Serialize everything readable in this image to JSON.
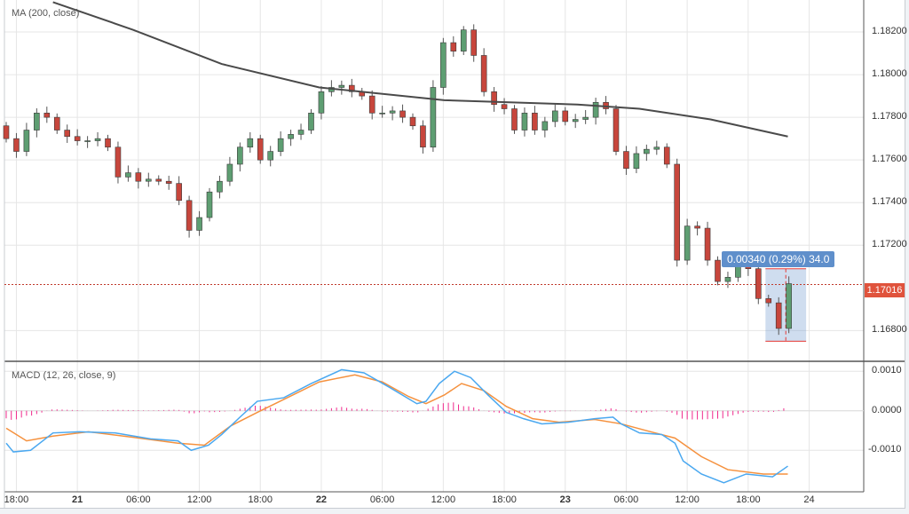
{
  "chart_data": [
    {
      "type": "candlestick",
      "title": "MA (200, close)",
      "interval_hours": 1,
      "start_time_label": "17:00",
      "closes": [
        1.177,
        1.1764,
        1.1774,
        1.1782,
        1.178,
        1.1774,
        1.1771,
        1.1769,
        1.1769,
        1.177,
        1.1766,
        1.1752,
        1.1754,
        1.175,
        1.1751,
        1.175,
        1.1749,
        1.1741,
        1.1727,
        1.1733,
        1.1745,
        1.175,
        1.1758,
        1.1766,
        1.177,
        1.176,
        1.1764,
        1.177,
        1.1772,
        1.1774,
        1.1782,
        1.1792,
        1.1794,
        1.1795,
        1.1792,
        1.179,
        1.1782,
        1.1782,
        1.1783,
        1.178,
        1.1776,
        1.1766,
        1.1794,
        1.1815,
        1.1811,
        1.1821,
        1.1809,
        1.1792,
        1.1786,
        1.1784,
        1.1774,
        1.1782,
        1.1774,
        1.1778,
        1.1783,
        1.1778,
        1.1779,
        1.178,
        1.1787,
        1.1784,
        1.1764,
        1.1756,
        1.1763,
        1.1765,
        1.1766,
        1.1758,
        1.1713,
        1.1729,
        1.1728,
        1.1713,
        1.1703,
        1.1705,
        1.1712,
        1.1709,
        1.1695,
        1.1693,
        1.1681,
        1.1702
      ],
      "first_open": 1.1776,
      "ma200": [
        [
          4.6,
          1.1834
        ],
        [
          12.5,
          1.1821
        ],
        [
          21.2,
          1.1805
        ],
        [
          30.8,
          1.1794
        ],
        [
          43.1,
          1.1788
        ],
        [
          56.2,
          1.1786
        ],
        [
          62.3,
          1.1784
        ],
        [
          69.3,
          1.1779
        ],
        [
          76.9,
          1.1771
        ]
      ],
      "ylim": [
        1.1666,
        1.1835
      ],
      "y_ticks": [
        "1.18200",
        "1.18000",
        "1.17800",
        "1.17600",
        "1.17400",
        "1.17200",
        "1.16800"
      ],
      "y_tick_values": [
        1.182,
        1.18,
        1.178,
        1.176,
        1.174,
        1.172,
        1.168
      ],
      "current_price": "1.17016",
      "current_price_value": 1.17016,
      "measure": {
        "label": "0.00340 (0.29%) 34.0",
        "from_hour": 74.7,
        "to_hour": 78.7,
        "high": 1.1709,
        "low": 1.1675
      },
      "colors": {
        "up": "#5e9e72",
        "down": "#c7463c",
        "ma": "#4a4a4a",
        "price_tag": "#e0533c",
        "measure": "#5f8fcb"
      }
    },
    {
      "type": "line",
      "title": "MACD (12, 26, close, 9)",
      "macd": [
        [
          0,
          -0.00082
        ],
        [
          0.7,
          -0.00104
        ],
        [
          2.4,
          -0.001
        ],
        [
          4.6,
          -0.00056
        ],
        [
          7.2,
          -0.00053
        ],
        [
          10.7,
          -0.00056
        ],
        [
          14.2,
          -0.00071
        ],
        [
          16.9,
          -0.00076
        ],
        [
          18.2,
          -0.001
        ],
        [
          19.9,
          -0.00087
        ],
        [
          21.2,
          -0.0006
        ],
        [
          23,
          -0.00016
        ],
        [
          24.7,
          0.00024
        ],
        [
          27.3,
          0.00033
        ],
        [
          30,
          0.00069
        ],
        [
          33,
          0.00104
        ],
        [
          35.2,
          0.00096
        ],
        [
          37.8,
          0.00058
        ],
        [
          40.4,
          0.00018
        ],
        [
          41.3,
          0.00024
        ],
        [
          42.6,
          0.00069
        ],
        [
          44.1,
          0.001
        ],
        [
          45.7,
          0.00084
        ],
        [
          47.4,
          0.0004
        ],
        [
          49.2,
          -4e-05
        ],
        [
          50.9,
          -0.0002
        ],
        [
          52.7,
          -0.00033
        ],
        [
          55.3,
          -0.00029
        ],
        [
          57.9,
          -0.0002
        ],
        [
          59.7,
          -0.00016
        ],
        [
          60.5,
          -0.00033
        ],
        [
          62.3,
          -0.00056
        ],
        [
          64.5,
          -0.0006
        ],
        [
          65.8,
          -0.00082
        ],
        [
          66.6,
          -0.00127
        ],
        [
          68.4,
          -0.0016
        ],
        [
          70.6,
          -0.00182
        ],
        [
          72.8,
          -0.0016
        ],
        [
          75.4,
          -0.00167
        ],
        [
          76.9,
          -0.0014
        ]
      ],
      "signal": [
        [
          0,
          -0.00044
        ],
        [
          2,
          -0.00076
        ],
        [
          4.6,
          -0.00064
        ],
        [
          8.1,
          -0.00053
        ],
        [
          12.5,
          -0.00067
        ],
        [
          16.9,
          -0.00082
        ],
        [
          19.5,
          -0.00087
        ],
        [
          22.1,
          -0.00038
        ],
        [
          24.7,
          -4e-05
        ],
        [
          28.2,
          0.0004
        ],
        [
          30.8,
          0.00073
        ],
        [
          34.3,
          0.00091
        ],
        [
          37,
          0.00073
        ],
        [
          39.6,
          0.00036
        ],
        [
          41.3,
          0.00018
        ],
        [
          43.1,
          0.0004
        ],
        [
          44.8,
          0.00069
        ],
        [
          47,
          0.00051
        ],
        [
          49.2,
          0.00011
        ],
        [
          51.8,
          -0.0002
        ],
        [
          54.4,
          -0.00029
        ],
        [
          57.9,
          -0.00022
        ],
        [
          60.5,
          -0.00033
        ],
        [
          63.1,
          -0.00051
        ],
        [
          65.8,
          -0.00069
        ],
        [
          68.4,
          -0.00116
        ],
        [
          71,
          -0.00149
        ],
        [
          74.5,
          -0.0016
        ],
        [
          76.9,
          -0.0016
        ]
      ],
      "ylim": [
        -0.00205,
        0.00123
      ],
      "y_ticks": [
        "0.0010",
        "0.0000",
        "-0.0010"
      ],
      "y_tick_values": [
        0.001,
        0,
        -0.001
      ],
      "colors": {
        "macd": "#4aa8f0",
        "signal": "#f5913e",
        "histogram": "#f0288c"
      }
    }
  ],
  "x_ticks": [
    {
      "label": "18:00",
      "hour": 1.0,
      "bold": false
    },
    {
      "label": "21",
      "hour": 7.0,
      "bold": true
    },
    {
      "label": "06:00",
      "hour": 13.0,
      "bold": false
    },
    {
      "label": "12:00",
      "hour": 19.0,
      "bold": false
    },
    {
      "label": "18:00",
      "hour": 25.0,
      "bold": false
    },
    {
      "label": "22",
      "hour": 31.0,
      "bold": true
    },
    {
      "label": "06:00",
      "hour": 37.0,
      "bold": false
    },
    {
      "label": "12:00",
      "hour": 43.0,
      "bold": false
    },
    {
      "label": "18:00",
      "hour": 49.0,
      "bold": false
    },
    {
      "label": "23",
      "hour": 55.0,
      "bold": true
    },
    {
      "label": "06:00",
      "hour": 61.0,
      "bold": false
    },
    {
      "label": "12:00",
      "hour": 67.0,
      "bold": false
    },
    {
      "label": "18:00",
      "hour": 73.0,
      "bold": false
    },
    {
      "label": "24",
      "hour": 79.0,
      "bold": false
    }
  ]
}
